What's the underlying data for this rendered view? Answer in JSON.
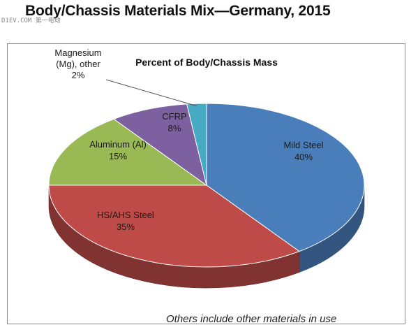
{
  "page": {
    "title": "Body/Chassis Materials Mix—Germany, 2015",
    "watermark": "D1EV.COM 第一电动",
    "footnote": "Others include other materials in use"
  },
  "chart_data": {
    "type": "pie",
    "title": "Percent of Body/Chassis Mass",
    "three_d": true,
    "start": "12 o'clock, clockwise",
    "slices": [
      {
        "name": "Mild Steel",
        "label_lines": [
          "Mild Steel",
          "40%"
        ],
        "value": 40,
        "color": "#4a7ebb"
      },
      {
        "name": "HS/AHS Steel",
        "label_lines": [
          "HS/AHS Steel",
          "35%"
        ],
        "value": 35,
        "color": "#be4b48"
      },
      {
        "name": "Aluminum (Al)",
        "label_lines": [
          "Aluminum (Al)",
          "15%"
        ],
        "value": 15,
        "color": "#98b954"
      },
      {
        "name": "CFRP",
        "label_lines": [
          "CFRP",
          "8%"
        ],
        "value": 8,
        "color": "#7d60a0"
      },
      {
        "name": "Magnesium (Mg), other",
        "label_lines": [
          "Magnesium",
          "(Mg), other",
          "2%"
        ],
        "value": 2,
        "color": "#46aac5"
      }
    ]
  }
}
